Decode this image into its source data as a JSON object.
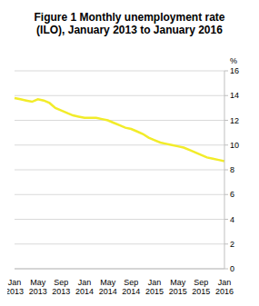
{
  "chart_data": {
    "type": "line",
    "title": "Figure 1 Monthly unemployment rate (ILO), January 2013 to January 2016",
    "y_label": "%",
    "categories": [
      "Jan 2013",
      null,
      null,
      null,
      "May 2013",
      null,
      null,
      null,
      "Sep 2013",
      null,
      null,
      null,
      "Jan 2014",
      null,
      null,
      null,
      "May 2014",
      null,
      null,
      null,
      "Sep 2014",
      null,
      null,
      null,
      "Jan 2015",
      null,
      null,
      null,
      "May 2015",
      null,
      null,
      null,
      "Sep 2015",
      null,
      null,
      null,
      "Jan 2016"
    ],
    "values": [
      13.8,
      13.7,
      13.6,
      13.5,
      13.7,
      13.6,
      13.4,
      13.0,
      12.8,
      12.6,
      12.4,
      12.3,
      12.2,
      12.2,
      12.2,
      12.1,
      12.0,
      11.8,
      11.6,
      11.4,
      11.3,
      11.1,
      10.9,
      10.6,
      10.4,
      10.2,
      10.1,
      10.0,
      9.9,
      9.8,
      9.6,
      9.4,
      9.2,
      9.0,
      8.9,
      8.8,
      8.7
    ],
    "color": "#f2ec2a",
    "ylim": [
      0,
      16
    ],
    "yticks": [
      0,
      2,
      4,
      6,
      8,
      10,
      12,
      14,
      16
    ],
    "grid": true
  }
}
